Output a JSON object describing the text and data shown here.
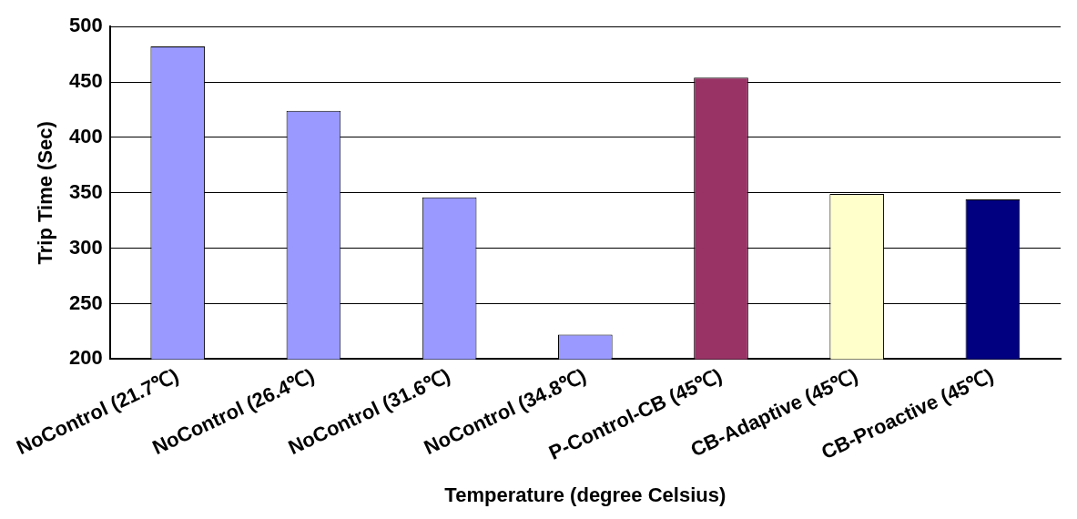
{
  "chart_data": {
    "type": "bar",
    "xlabel": "Temperature (degree Celsius)",
    "ylabel": "Trip Time (Sec)",
    "categories": [
      "NoControl (21.7℃)",
      "NoControl (26.4℃)",
      "NoControl (31.6℃)",
      "NoControl (34.8℃)",
      "P-Control-CB (45℃)",
      "CB-Adaptive (45℃)",
      "CB-Proactive (45℃)"
    ],
    "values": [
      482,
      424,
      346,
      222,
      454,
      349,
      344
    ],
    "colors": [
      "#9999ff",
      "#9999ff",
      "#9999ff",
      "#9999ff",
      "#993366",
      "#ffffcc",
      "#000080"
    ],
    "ylim": [
      200,
      500
    ],
    "yticks": [
      200,
      250,
      300,
      350,
      400,
      450,
      500
    ],
    "grid": "y",
    "legend": false
  }
}
